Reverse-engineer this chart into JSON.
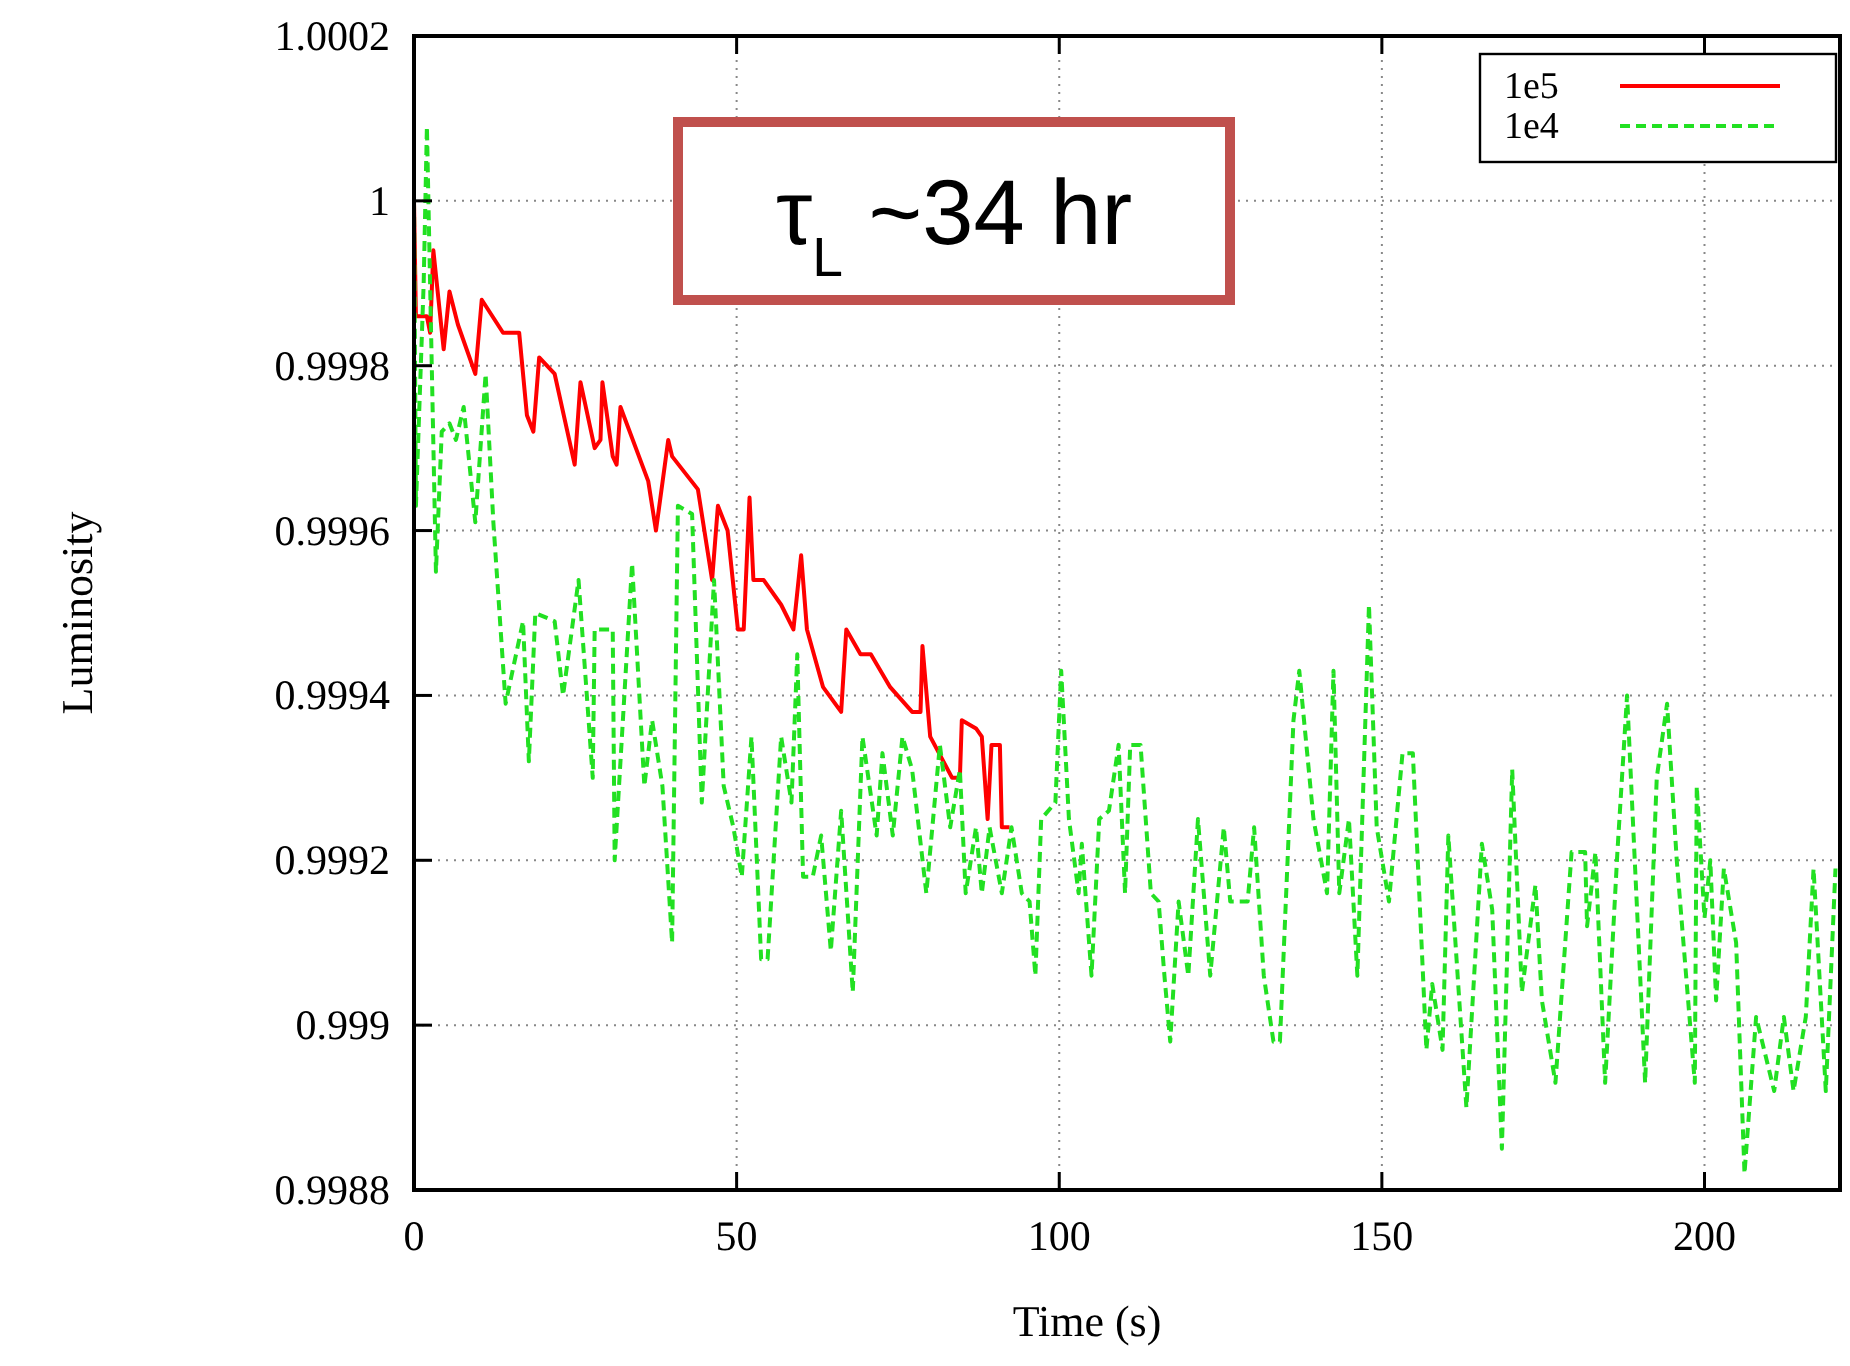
{
  "chart_data": {
    "type": "line",
    "xlabel": "Time (s)",
    "ylabel": "Luminosity",
    "annotations": [
      "τ$_{L}$ ~34 hr"
    ],
    "xlim": [
      0,
      221
    ],
    "ylim": [
      0.9988,
      1.0002
    ],
    "xticks": [
      0,
      50,
      100,
      150,
      200
    ],
    "yticks": [
      0.9988,
      0.999,
      0.9992,
      0.9994,
      0.9996,
      0.9998,
      1,
      1.0002
    ],
    "grid": true,
    "legend": "top right",
    "series": [
      {
        "name": "1e5",
        "color": "#ff0000",
        "line_style": "solid",
        "x": [
          0,
          0.3,
          2,
          2.5,
          3,
          4.6,
          5.5,
          6.8,
          9.5,
          10.5,
          13.8,
          16.3,
          17.5,
          18.5,
          19.4,
          21.8,
          24.9,
          25.8,
          28,
          28.9,
          29.2,
          30.8,
          31.4,
          32,
          36.3,
          37.5,
          39.4,
          40,
          44,
          46.2,
          47.1,
          48.6,
          50.2,
          51.1,
          52,
          52.6,
          54.2,
          56.9,
          58.8,
          60,
          60.9,
          63.4,
          66.2,
          67,
          69.2,
          70.8,
          73.8,
          77.2,
          78.5,
          78.8,
          80,
          83.4,
          84.6,
          84.9,
          87.1,
          88,
          88.9,
          89.5,
          90.8,
          91.1,
          92.3
        ],
        "values": [
          1.0,
          0.99986,
          0.99986,
          0.99984,
          0.99994,
          0.99982,
          0.99989,
          0.99985,
          0.99979,
          0.99988,
          0.99984,
          0.99984,
          0.99974,
          0.99972,
          0.99981,
          0.99979,
          0.99968,
          0.99978,
          0.9997,
          0.99971,
          0.99978,
          0.99969,
          0.99968,
          0.99975,
          0.99966,
          0.9996,
          0.99971,
          0.99969,
          0.99965,
          0.99954,
          0.99963,
          0.9996,
          0.99948,
          0.99948,
          0.99964,
          0.99954,
          0.99954,
          0.99951,
          0.99948,
          0.99957,
          0.99948,
          0.99941,
          0.99938,
          0.99948,
          0.99945,
          0.99945,
          0.99941,
          0.99938,
          0.99938,
          0.99946,
          0.99935,
          0.9993,
          0.9993,
          0.99937,
          0.99936,
          0.99935,
          0.99925,
          0.99934,
          0.99934,
          0.99924,
          0.99924
        ]
      },
      {
        "name": "1e4",
        "color": "#22e022",
        "line_style": "dashed",
        "x": [
          0,
          0.3,
          1.5,
          2,
          3.4,
          4.3,
          5.5,
          6.5,
          7.7,
          9.5,
          11.1,
          12.3,
          14.2,
          16.9,
          17.8,
          18.8,
          21.8,
          23.1,
          25.5,
          27.7,
          28,
          30.8,
          31.1,
          33.8,
          35.7,
          36.9,
          38.5,
          40,
          40.9,
          43.1,
          44.6,
          46.5,
          48,
          49.5,
          50.8,
          52.3,
          53.8,
          54.8,
          56.9,
          58.5,
          59.4,
          60.3,
          61.8,
          63.1,
          64.6,
          66.2,
          68,
          69.5,
          71.7,
          72.6,
          74.2,
          75.7,
          77.2,
          79.4,
          81.5,
          83.1,
          84.6,
          85.5,
          87.1,
          88,
          89.2,
          91.1,
          92.6,
          94.2,
          95.4,
          96.3,
          97.2,
          99.4,
          100.3,
          101.5,
          103,
          103.5,
          105,
          106.2,
          107.7,
          109.2,
          110.2,
          111,
          112.6,
          114.2,
          115.4,
          116.3,
          117.2,
          118.5,
          120,
          121.5,
          123.4,
          125.5,
          126.5,
          129.2,
          130.2,
          131.7,
          133.2,
          134.2,
          136.3,
          137.2,
          139.4,
          141.5,
          142.5,
          143.4,
          144.9,
          146.2,
          148,
          149.2,
          151.1,
          153.2,
          154.8,
          156.9,
          157.8,
          159.4,
          160.3,
          163.1,
          165.5,
          167.1,
          168.6,
          170.2,
          171.7,
          173.8,
          174.8,
          176.9,
          179.4,
          181.5,
          181.8,
          183.1,
          184.6,
          186.5,
          188,
          190.8,
          192.6,
          194.2,
          195.7,
          198.5,
          198.8,
          200,
          200.9,
          201.8,
          203,
          204.9,
          206.2,
          208,
          210.8,
          212.3,
          213.8,
          215.7,
          216.9,
          218.8,
          220.3
        ],
        "values": [
          1.0,
          0.99963,
          0.9999,
          1.00009,
          0.99955,
          0.99972,
          0.99973,
          0.99971,
          0.99975,
          0.99961,
          0.99979,
          0.99961,
          0.99939,
          0.99949,
          0.99932,
          0.9995,
          0.99949,
          0.9994,
          0.99954,
          0.9993,
          0.99948,
          0.99948,
          0.9992,
          0.99956,
          0.99929,
          0.99937,
          0.99929,
          0.9991,
          0.99963,
          0.99962,
          0.99927,
          0.99954,
          0.99929,
          0.99924,
          0.99918,
          0.99935,
          0.99908,
          0.99908,
          0.99935,
          0.99927,
          0.99945,
          0.99918,
          0.99918,
          0.99923,
          0.99909,
          0.99926,
          0.99904,
          0.99935,
          0.99923,
          0.99933,
          0.99923,
          0.99935,
          0.99931,
          0.99916,
          0.99934,
          0.99924,
          0.99931,
          0.99916,
          0.99924,
          0.99916,
          0.99924,
          0.99916,
          0.99924,
          0.99916,
          0.99915,
          0.99906,
          0.99925,
          0.99927,
          0.99943,
          0.99925,
          0.99916,
          0.99922,
          0.99906,
          0.99925,
          0.99926,
          0.99934,
          0.99916,
          0.99934,
          0.99934,
          0.99916,
          0.99915,
          0.99906,
          0.99898,
          0.99915,
          0.99906,
          0.99925,
          0.99906,
          0.99924,
          0.99915,
          0.99915,
          0.99924,
          0.99906,
          0.99898,
          0.99898,
          0.99937,
          0.99943,
          0.99925,
          0.99916,
          0.99943,
          0.99916,
          0.99925,
          0.99906,
          0.99951,
          0.99924,
          0.99915,
          0.99933,
          0.99933,
          0.99897,
          0.99905,
          0.99897,
          0.99923,
          0.9989,
          0.99922,
          0.99914,
          0.99885,
          0.99931,
          0.99904,
          0.99917,
          0.99903,
          0.99893,
          0.99921,
          0.99921,
          0.99912,
          0.99921,
          0.99893,
          0.99921,
          0.9994,
          0.99893,
          0.9993,
          0.99939,
          0.9992,
          0.99893,
          0.99929,
          0.99913,
          0.9992,
          0.99903,
          0.99919,
          0.9991,
          0.99882,
          0.99901,
          0.99892,
          0.99901,
          0.99892,
          0.99901,
          0.99919,
          0.99892,
          0.99919
        ]
      }
    ]
  }
}
